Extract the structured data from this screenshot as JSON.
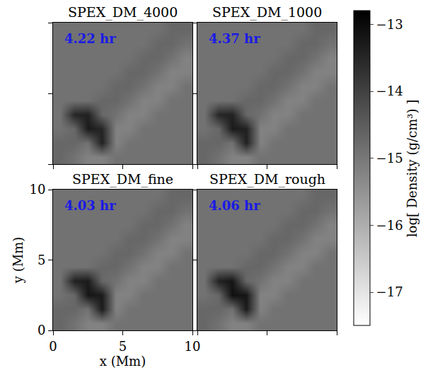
{
  "chart_data": {
    "type": "heatmap",
    "xlabel": "x (Mm)",
    "ylabel": "y (Mm)",
    "xlim": [
      0,
      10
    ],
    "ylim": [
      0,
      10
    ],
    "xticks": [
      0,
      5,
      10
    ],
    "yticks": [
      0,
      5,
      10
    ],
    "x": [
      0.5,
      1.5,
      2.5,
      3.5,
      4.5,
      5.5,
      6.5,
      7.5,
      8.5,
      9.5
    ],
    "y": [
      0.5,
      1.5,
      2.5,
      3.5,
      4.5,
      5.5,
      6.5,
      7.5,
      8.5,
      9.5
    ],
    "colorbar": {
      "title": "log[ Density (g/cm³) ]",
      "zlim": [
        -17.5,
        -12.8
      ],
      "ticks": [
        {
          "value": -17,
          "label": "−17"
        },
        {
          "value": -16,
          "label": "−16"
        },
        {
          "value": -15,
          "label": "−15"
        },
        {
          "value": -14,
          "label": "−14"
        },
        {
          "value": -13,
          "label": "−13"
        }
      ]
    },
    "panels": [
      {
        "title": "SPEX_DM_4000",
        "time": "4.22 hr",
        "tick_labels": false,
        "cells": [
          [
            -14.7,
            -14.9,
            -15.2,
            -15.2,
            -14.9,
            -14.9,
            -14.9,
            -14.9,
            -14.9,
            -14.9
          ],
          [
            -14.7,
            -14.7,
            -14.9,
            -13.4,
            -15.2,
            -14.9,
            -14.9,
            -14.9,
            -14.9,
            -14.9
          ],
          [
            -14.9,
            -14.7,
            -13.3,
            -13.5,
            -15.2,
            -15.2,
            -14.9,
            -14.9,
            -14.9,
            -14.9
          ],
          [
            -14.9,
            -13.5,
            -13.4,
            -14.7,
            -14.9,
            -15.2,
            -15.2,
            -14.9,
            -14.9,
            -14.9
          ],
          [
            -14.9,
            -14.9,
            -14.9,
            -14.7,
            -14.7,
            -14.9,
            -15.2,
            -15.2,
            -14.9,
            -14.9
          ],
          [
            -14.9,
            -14.9,
            -14.9,
            -14.9,
            -14.7,
            -14.7,
            -14.9,
            -15.2,
            -15.2,
            -14.9
          ],
          [
            -14.9,
            -14.9,
            -14.9,
            -14.9,
            -14.9,
            -14.7,
            -14.7,
            -14.9,
            -15.2,
            -15.2
          ],
          [
            -14.9,
            -14.9,
            -14.9,
            -14.9,
            -14.9,
            -14.9,
            -14.7,
            -14.7,
            -14.9,
            -15.2
          ],
          [
            -14.9,
            -14.9,
            -14.9,
            -14.9,
            -14.9,
            -14.9,
            -14.9,
            -14.7,
            -14.7,
            -14.9
          ],
          [
            -14.9,
            -14.9,
            -14.9,
            -14.9,
            -14.9,
            -14.9,
            -14.9,
            -14.9,
            -14.7,
            -14.7
          ]
        ]
      },
      {
        "title": "SPEX_DM_1000",
        "time": "4.37 hr",
        "tick_labels": false,
        "cells": [
          [
            -14.7,
            -14.9,
            -15.2,
            -15.2,
            -14.9,
            -14.9,
            -14.9,
            -14.9,
            -14.9,
            -14.9
          ],
          [
            -14.7,
            -14.7,
            -14.9,
            -13.4,
            -15.2,
            -14.9,
            -14.9,
            -14.9,
            -14.9,
            -14.9
          ],
          [
            -14.9,
            -14.7,
            -13.3,
            -13.4,
            -15.2,
            -15.2,
            -14.9,
            -14.9,
            -14.9,
            -14.9
          ],
          [
            -14.9,
            -13.5,
            -13.4,
            -14.7,
            -14.9,
            -15.2,
            -15.2,
            -14.9,
            -14.9,
            -14.9
          ],
          [
            -14.9,
            -14.9,
            -14.9,
            -14.7,
            -14.7,
            -14.9,
            -15.2,
            -15.2,
            -14.9,
            -14.9
          ],
          [
            -14.9,
            -14.9,
            -14.9,
            -14.9,
            -14.7,
            -14.7,
            -14.9,
            -15.2,
            -15.2,
            -14.9
          ],
          [
            -14.9,
            -14.9,
            -14.9,
            -14.9,
            -14.9,
            -14.7,
            -14.7,
            -14.9,
            -15.2,
            -15.2
          ],
          [
            -14.9,
            -14.9,
            -14.9,
            -14.9,
            -14.9,
            -14.9,
            -14.7,
            -14.7,
            -14.9,
            -15.2
          ],
          [
            -14.9,
            -14.9,
            -14.9,
            -14.9,
            -14.9,
            -14.9,
            -14.9,
            -14.7,
            -14.7,
            -14.9
          ],
          [
            -14.9,
            -14.9,
            -14.9,
            -14.9,
            -14.9,
            -14.9,
            -14.9,
            -14.9,
            -14.7,
            -14.7
          ]
        ]
      },
      {
        "title": "SPEX_DM_fine",
        "time": "4.03 hr",
        "cells": [
          [
            -14.7,
            -14.9,
            -15.2,
            -15.2,
            -14.9,
            -14.9,
            -14.9,
            -14.9,
            -14.9,
            -14.9
          ],
          [
            -14.7,
            -14.7,
            -14.9,
            -13.3,
            -15.2,
            -14.9,
            -14.9,
            -14.9,
            -14.9,
            -14.9
          ],
          [
            -14.9,
            -14.7,
            -13.2,
            -13.3,
            -15.2,
            -15.2,
            -14.9,
            -14.9,
            -14.9,
            -14.9
          ],
          [
            -14.9,
            -13.4,
            -13.3,
            -14.7,
            -14.9,
            -15.2,
            -15.2,
            -14.9,
            -14.9,
            -14.9
          ],
          [
            -14.9,
            -14.9,
            -14.9,
            -14.7,
            -14.7,
            -14.9,
            -15.2,
            -15.2,
            -14.9,
            -14.9
          ],
          [
            -14.9,
            -14.9,
            -14.9,
            -14.9,
            -14.7,
            -14.7,
            -14.9,
            -15.2,
            -15.2,
            -14.9
          ],
          [
            -14.9,
            -14.9,
            -14.9,
            -14.9,
            -14.9,
            -14.7,
            -14.7,
            -14.9,
            -15.2,
            -15.2
          ],
          [
            -14.9,
            -14.9,
            -14.9,
            -14.9,
            -14.9,
            -14.9,
            -14.7,
            -14.7,
            -14.9,
            -15.2
          ],
          [
            -14.9,
            -14.9,
            -14.9,
            -14.9,
            -14.9,
            -14.9,
            -14.9,
            -14.7,
            -14.7,
            -14.9
          ],
          [
            -14.9,
            -14.9,
            -14.9,
            -14.9,
            -14.9,
            -14.9,
            -14.9,
            -14.9,
            -14.7,
            -14.7
          ]
        ]
      },
      {
        "title": "SPEX_DM_rough",
        "time": "4.06 hr",
        "tick_labels": false,
        "cells": [
          [
            -14.7,
            -14.9,
            -15.2,
            -15.2,
            -14.9,
            -14.9,
            -14.9,
            -14.9,
            -14.9,
            -14.9
          ],
          [
            -14.7,
            -14.7,
            -14.9,
            -13.3,
            -15.2,
            -14.9,
            -14.9,
            -14.9,
            -14.9,
            -14.9
          ],
          [
            -14.9,
            -14.7,
            -13.1,
            -13.2,
            -15.2,
            -15.2,
            -14.9,
            -14.9,
            -14.9,
            -14.9
          ],
          [
            -14.9,
            -13.4,
            -13.2,
            -14.7,
            -14.9,
            -15.2,
            -15.2,
            -14.9,
            -14.9,
            -14.9
          ],
          [
            -14.9,
            -14.9,
            -14.9,
            -14.7,
            -14.7,
            -14.9,
            -15.2,
            -15.2,
            -14.9,
            -14.9
          ],
          [
            -14.9,
            -14.9,
            -14.9,
            -14.9,
            -14.7,
            -14.7,
            -14.9,
            -15.2,
            -15.2,
            -14.9
          ],
          [
            -14.9,
            -14.9,
            -14.9,
            -14.9,
            -14.9,
            -14.7,
            -14.7,
            -14.9,
            -15.2,
            -15.2
          ],
          [
            -14.9,
            -14.9,
            -14.9,
            -14.9,
            -14.9,
            -14.9,
            -14.7,
            -14.7,
            -14.9,
            -15.2
          ],
          [
            -14.9,
            -14.9,
            -14.9,
            -14.9,
            -14.9,
            -14.9,
            -14.9,
            -14.7,
            -14.7,
            -14.9
          ],
          [
            -14.9,
            -14.9,
            -14.9,
            -14.9,
            -14.9,
            -14.9,
            -14.9,
            -14.9,
            -14.7,
            -14.7
          ]
        ]
      }
    ]
  }
}
